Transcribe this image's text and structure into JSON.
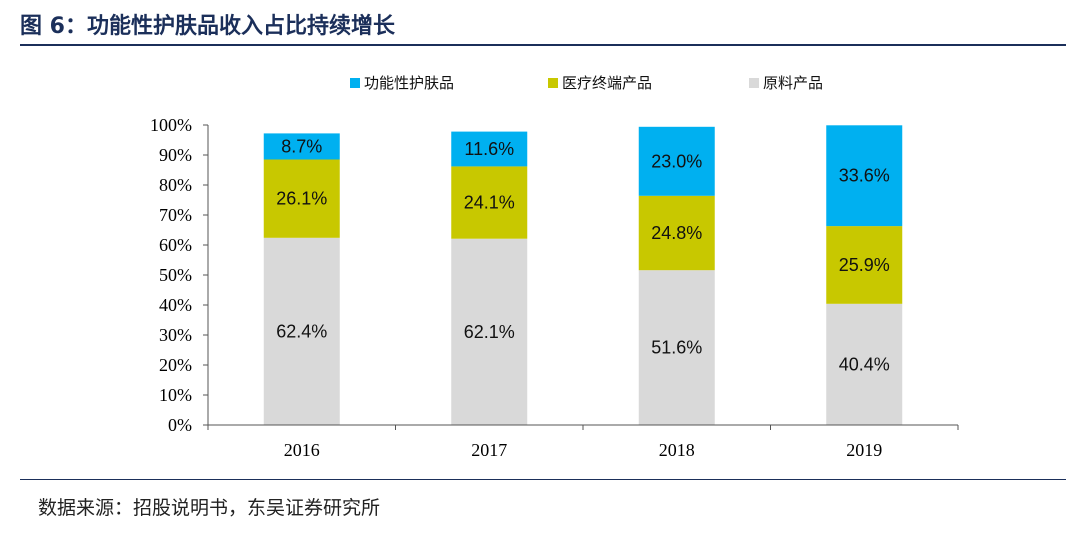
{
  "header": {
    "title": "图 6：功能性护肤品收入占比持续增长"
  },
  "footer": {
    "source": "数据来源：招股说明书，东吴证券研究所"
  },
  "chart_data": {
    "type": "bar",
    "stacked": true,
    "categories": [
      "2016",
      "2017",
      "2018",
      "2019"
    ],
    "series": [
      {
        "name": "原料产品",
        "values": [
          62.4,
          62.1,
          51.6,
          40.4
        ],
        "color": "#d9d9d9"
      },
      {
        "name": "医疗终端产品",
        "values": [
          26.1,
          24.1,
          24.8,
          25.9
        ],
        "color": "#c8c800"
      },
      {
        "name": "功能性护肤品",
        "values": [
          8.7,
          11.6,
          23.0,
          33.6
        ],
        "color": "#00b0f0"
      }
    ],
    "legend_order": [
      "功能性护肤品",
      "医疗终端产品",
      "原料产品"
    ],
    "data_labels": [
      [
        "62.4%",
        "62.1%",
        "51.6%",
        "40.4%"
      ],
      [
        "26.1%",
        "24.1%",
        "24.8%",
        "25.9%"
      ],
      [
        "8.7%",
        "11.6%",
        "23.0%",
        "33.6%"
      ]
    ],
    "yticks": [
      "0%",
      "10%",
      "20%",
      "30%",
      "40%",
      "50%",
      "60%",
      "70%",
      "80%",
      "90%",
      "100%"
    ],
    "ylim": [
      0,
      100
    ],
    "legend_position": "top-center",
    "grid": false
  }
}
